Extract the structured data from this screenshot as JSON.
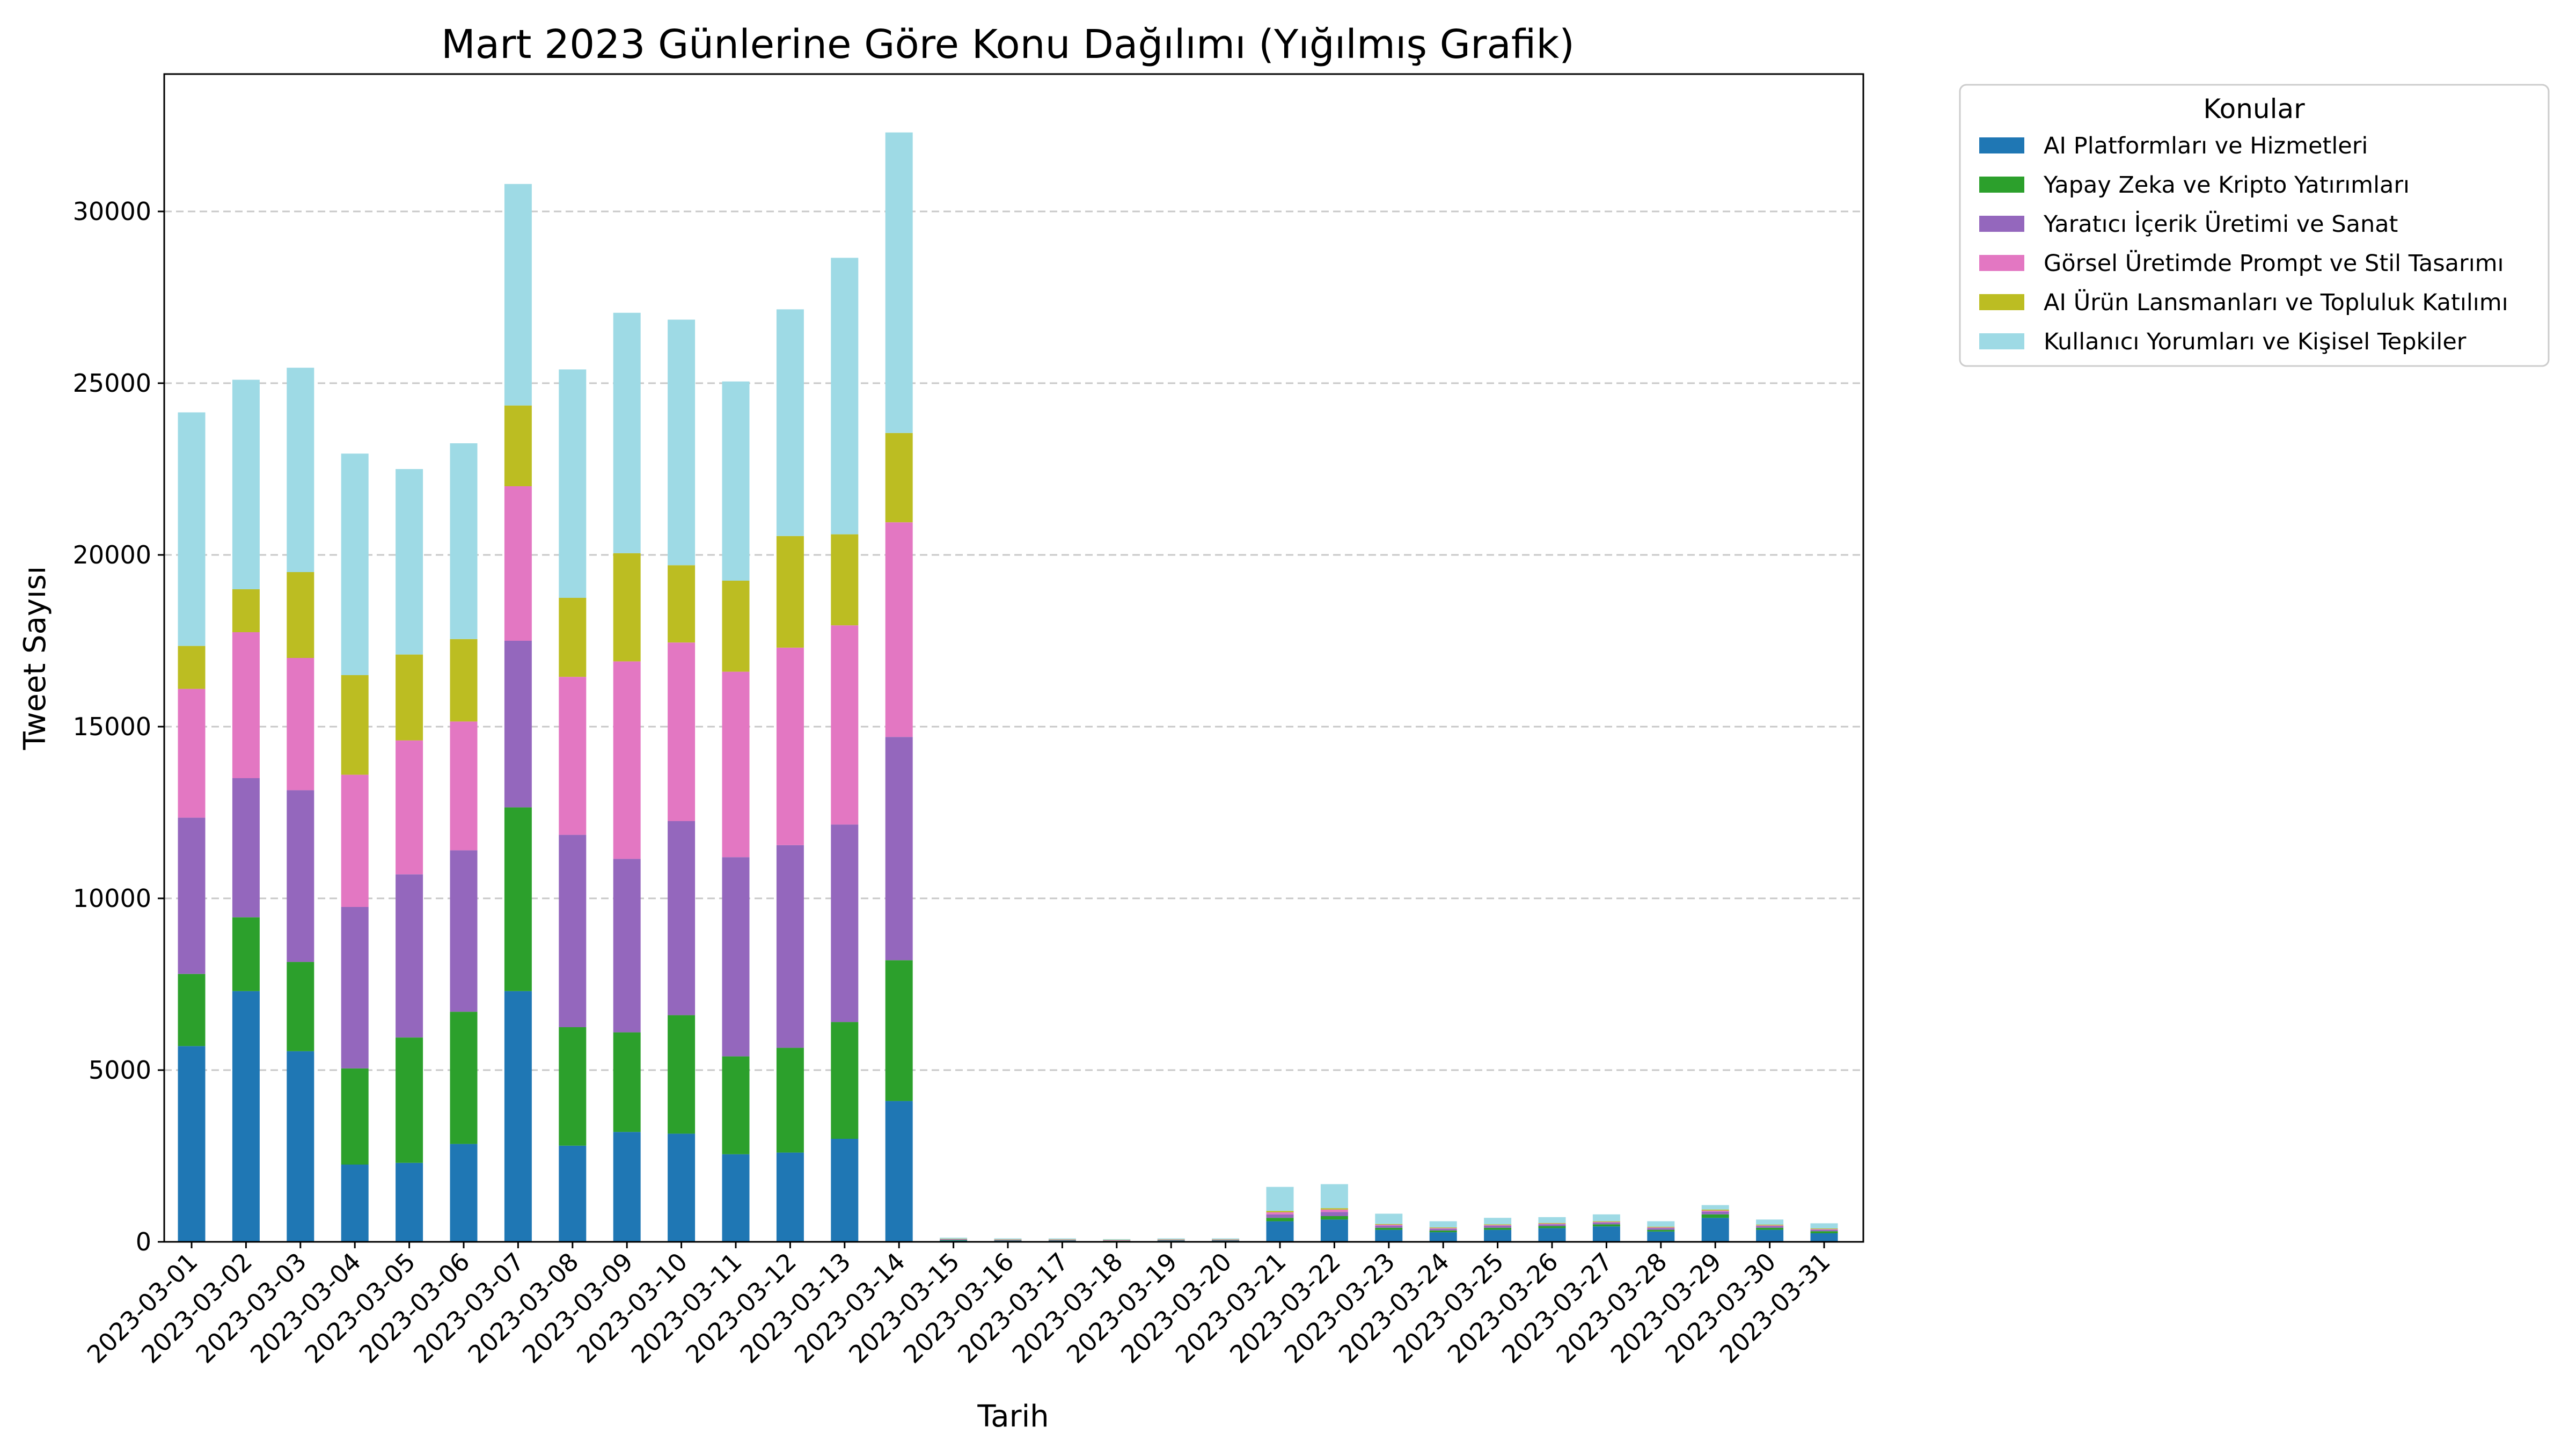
{
  "chart_data": {
    "type": "bar",
    "stacked": true,
    "title": "Mart 2023 Günlerine Göre Konu Dağılımı (Yığılmış Grafik)",
    "xlabel": "Tarih",
    "ylabel": "Tweet Sayısı",
    "ylim": [
      0,
      34000
    ],
    "yticks": [
      0,
      5000,
      10000,
      15000,
      20000,
      25000,
      30000
    ],
    "grid": "y",
    "legend_title": "Konular",
    "legend_position": "outside-top-right",
    "categories": [
      "2023-03-01",
      "2023-03-02",
      "2023-03-03",
      "2023-03-04",
      "2023-03-05",
      "2023-03-06",
      "2023-03-07",
      "2023-03-08",
      "2023-03-09",
      "2023-03-10",
      "2023-03-11",
      "2023-03-12",
      "2023-03-13",
      "2023-03-14",
      "2023-03-15",
      "2023-03-16",
      "2023-03-17",
      "2023-03-18",
      "2023-03-19",
      "2023-03-20",
      "2023-03-21",
      "2023-03-22",
      "2023-03-23",
      "2023-03-24",
      "2023-03-25",
      "2023-03-26",
      "2023-03-27",
      "2023-03-28",
      "2023-03-29",
      "2023-03-30",
      "2023-03-31"
    ],
    "series": [
      {
        "name": "AI Platformları ve Hizmetleri",
        "color": "#1f77b4",
        "values": [
          5700,
          7300,
          5550,
          2250,
          2300,
          2850,
          7300,
          2800,
          3200,
          3150,
          2550,
          2600,
          3000,
          4100,
          40,
          30,
          30,
          20,
          30,
          30,
          600,
          650,
          350,
          280,
          350,
          400,
          450,
          300,
          700,
          350,
          250
        ]
      },
      {
        "name": "Yapay Zeka ve Kripto Yatırımları",
        "color": "#2ca02c",
        "values": [
          2100,
          2150,
          2600,
          2800,
          3650,
          3850,
          5350,
          3450,
          2900,
          3450,
          2850,
          3050,
          3400,
          4100,
          15,
          10,
          10,
          10,
          10,
          10,
          100,
          100,
          60,
          50,
          60,
          60,
          60,
          50,
          100,
          60,
          60
        ]
      },
      {
        "name": "Yaratıcı İçerik Üretimi ve Sanat",
        "color": "#9467bd",
        "values": [
          4550,
          4050,
          5000,
          4700,
          4750,
          4700,
          4850,
          5600,
          5050,
          5650,
          5800,
          5900,
          5750,
          6500,
          15,
          15,
          15,
          10,
          15,
          15,
          100,
          120,
          60,
          50,
          60,
          50,
          50,
          50,
          80,
          50,
          40
        ]
      },
      {
        "name": "Görsel Üretimde Prompt ve Stil Tasarımı",
        "color": "#e377c2",
        "values": [
          3750,
          4250,
          3850,
          3850,
          3900,
          3750,
          4500,
          4600,
          5750,
          5200,
          5400,
          5750,
          5800,
          6250,
          10,
          10,
          10,
          10,
          10,
          10,
          60,
          70,
          30,
          20,
          20,
          20,
          20,
          20,
          30,
          20,
          20
        ]
      },
      {
        "name": "AI Ürün Lansmanları ve Topluluk Katılımı",
        "color": "#bcbd22",
        "values": [
          1250,
          1250,
          2500,
          2900,
          2500,
          2400,
          2350,
          2300,
          3150,
          2250,
          2650,
          3250,
          2650,
          2600,
          10,
          10,
          10,
          10,
          10,
          10,
          40,
          40,
          20,
          20,
          20,
          20,
          20,
          20,
          30,
          20,
          20
        ]
      },
      {
        "name": "Kullanıcı Yorumları ve Kişisel Tepkiler",
        "color": "#9edae5",
        "values": [
          6800,
          6100,
          5950,
          6450,
          5400,
          5700,
          6450,
          6650,
          7000,
          7150,
          5800,
          6600,
          8050,
          8750,
          30,
          25,
          25,
          20,
          25,
          25,
          700,
          700,
          300,
          180,
          190,
          170,
          200,
          160,
          130,
          150,
          150
        ]
      }
    ]
  }
}
